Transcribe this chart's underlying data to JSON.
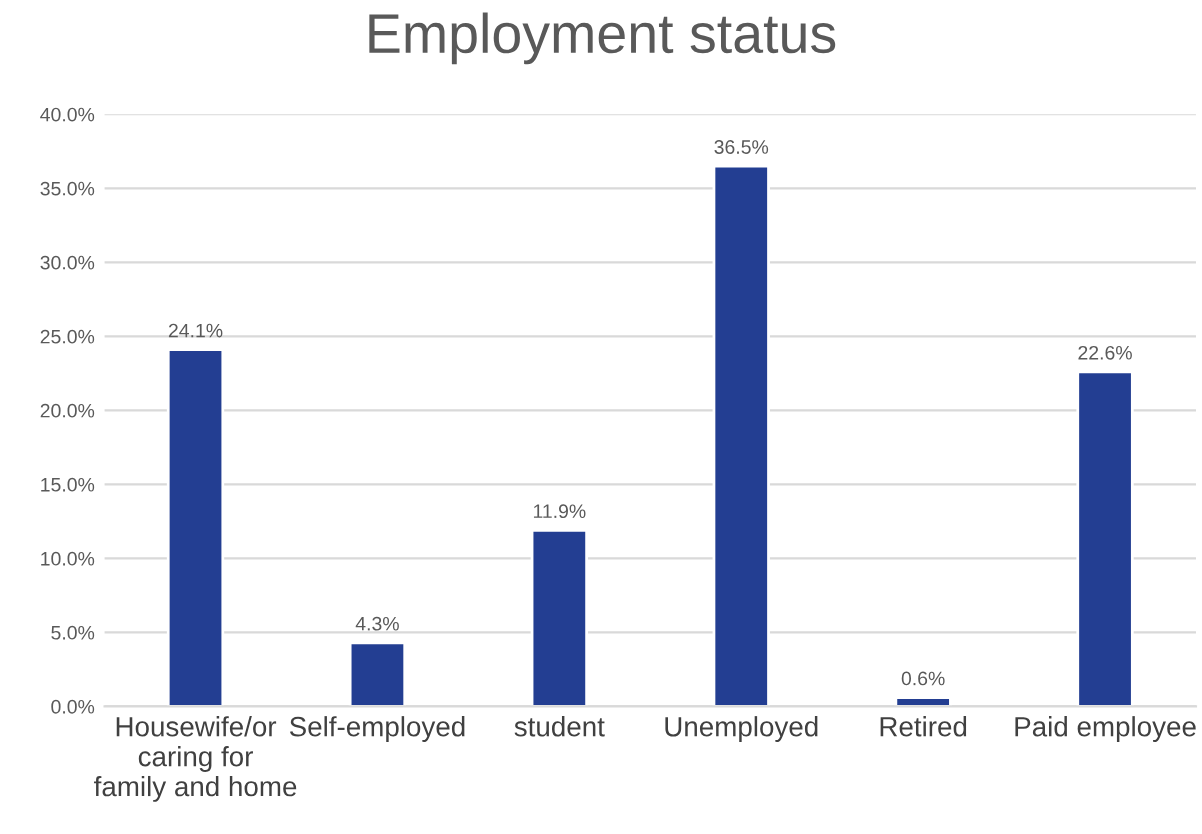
{
  "chart_data": {
    "type": "bar",
    "title": "Employment status",
    "categories": [
      "Housewife/or\ncaring for\nfamily and home",
      "Self-employed",
      "student",
      "Unemployed",
      "Retired",
      "Paid employee"
    ],
    "values": [
      24.1,
      4.3,
      11.9,
      36.5,
      0.6,
      22.6
    ],
    "value_labels": [
      "24.1%",
      "4.3%",
      "11.9%",
      "36.5%",
      "0.6%",
      "22.6%"
    ],
    "color": "#233e92",
    "ylim": [
      0,
      40
    ],
    "yticks": [
      {
        "value": 0,
        "label": "0.0%"
      },
      {
        "value": 5,
        "label": "5.0%"
      },
      {
        "value": 10,
        "label": "10.0%"
      },
      {
        "value": 15,
        "label": "15.0%"
      },
      {
        "value": 20,
        "label": "20.0%"
      },
      {
        "value": 25,
        "label": "25.0%"
      },
      {
        "value": 30,
        "label": "30.0%"
      },
      {
        "value": 35,
        "label": "35.0%"
      },
      {
        "value": 40,
        "label": "40.0%"
      }
    ],
    "grid": "y",
    "legend": false
  }
}
